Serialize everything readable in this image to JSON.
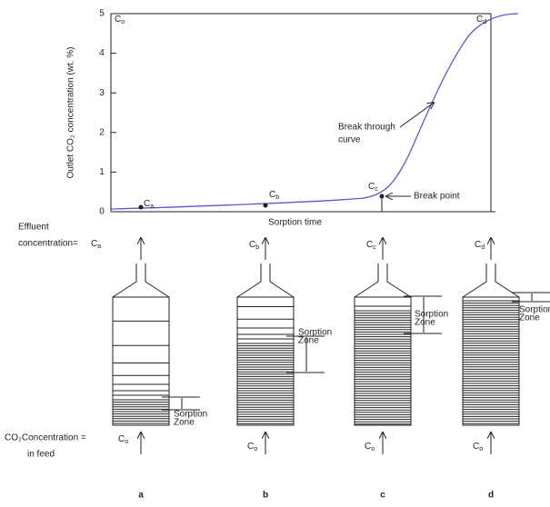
{
  "chart": {
    "y_label": "Outlet CO₂ concentration (wt. %)",
    "x_label": "Sorption time",
    "yticks": [
      0,
      1,
      2,
      3,
      4,
      5
    ],
    "top_label": {
      "main": "C",
      "sub": "o"
    },
    "points": [
      {
        "main": "C",
        "sub": "a"
      },
      {
        "main": "C",
        "sub": "b"
      },
      {
        "main": "C",
        "sub": "c"
      },
      {
        "main": "C",
        "sub": "d"
      }
    ],
    "breakthrough_label": [
      "Break through",
      "curve"
    ],
    "break_point_label": "Break point"
  },
  "effluent_label": [
    "Effluent",
    "concentration= "
  ],
  "feed_label": [
    "CO₂Concentration = ",
    "in feed"
  ],
  "columns": [
    {
      "letter": "a",
      "effluent": {
        "main": "C",
        "sub": "a"
      },
      "feed": {
        "main": "C",
        "sub": "o"
      },
      "zone_label": [
        "Sorption",
        "Zone"
      ]
    },
    {
      "letter": "b",
      "effluent": {
        "main": "C",
        "sub": "b"
      },
      "feed": {
        "main": "C",
        "sub": "o"
      },
      "zone_label": [
        "Sorption",
        "Zone"
      ]
    },
    {
      "letter": "c",
      "effluent": {
        "main": "C",
        "sub": "c"
      },
      "feed": {
        "main": "C",
        "sub": "o"
      },
      "zone_label": [
        "Sorption",
        "Zone"
      ]
    },
    {
      "letter": "d",
      "effluent": {
        "main": "C",
        "sub": "d"
      },
      "feed": {
        "main": "C",
        "sub": "o"
      },
      "zone_label": [
        "Sorption",
        "Zone"
      ]
    }
  ]
}
